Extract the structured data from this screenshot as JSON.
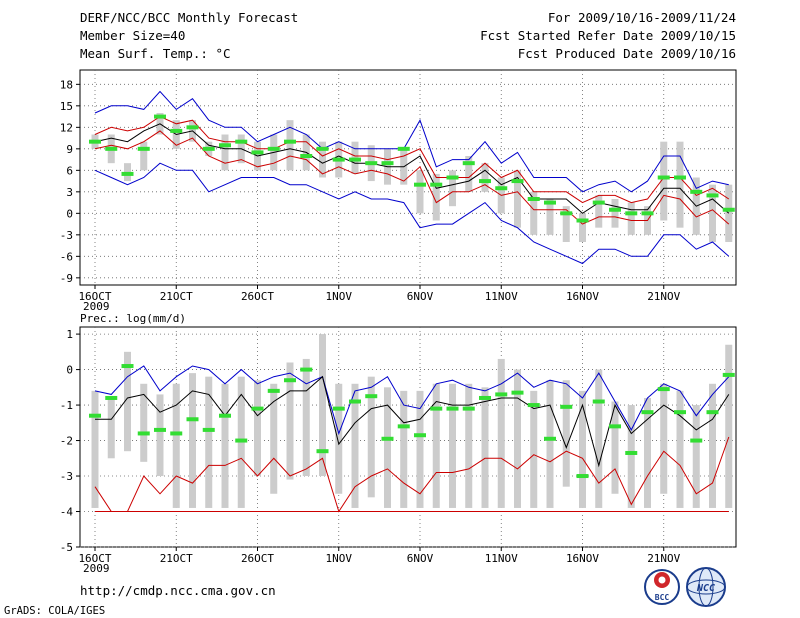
{
  "header": {
    "title": "DERF/NCC/BCC Monthly Forecast",
    "member_size": "Member Size=40",
    "variable": "Mean Surf. Temp.: °C",
    "for_range": "For 2009/10/16-2009/11/24",
    "started": "Fcst Started Refer Date 2009/10/15",
    "produced": "Fcst Produced Date 2009/10/16"
  },
  "footer": {
    "url": "http://cmdp.ncc.cma.gov.cn",
    "credit": "GrADS: COLA/IGES",
    "logo_left_text": "BCC",
    "logo_right_text": "NCC"
  },
  "colors": {
    "max_line": "#0000cc",
    "min_line": "#cc0000",
    "mean_line": "#000000",
    "median_marker": "#33dd33",
    "box": "#cccccc",
    "grid": "#666666"
  },
  "chart_data": [
    {
      "type": "line",
      "title": "Mean Surf. Temp.: °C",
      "x_tick_labels": [
        "16OCT",
        "21OCT",
        "26OCT",
        "1NOV",
        "6NOV",
        "11NOV",
        "16NOV",
        "21NOV"
      ],
      "x_tick_index": [
        0,
        5,
        10,
        15,
        20,
        25,
        30,
        35
      ],
      "x_sublabel": "2009",
      "y_ticks": [
        18,
        15,
        12,
        9,
        6,
        3,
        0,
        -3,
        -6,
        -9
      ],
      "ylim": [
        -10,
        20
      ],
      "series": [
        {
          "name": "max",
          "values": [
            14,
            15,
            15,
            14.5,
            17,
            14.5,
            16,
            13,
            12,
            12,
            10,
            11,
            12,
            11,
            9,
            10,
            9,
            9,
            9,
            9,
            13,
            6.5,
            7.5,
            7.5,
            10,
            7,
            8.5,
            5,
            5,
            5,
            3,
            4,
            4.5,
            3,
            4.5,
            8,
            8,
            3.5,
            4.5,
            4
          ]
        },
        {
          "name": "upper",
          "values": [
            11,
            12,
            11.5,
            12,
            13.5,
            12.5,
            13,
            10.5,
            10,
            10,
            9,
            9,
            10,
            10,
            8,
            9,
            8,
            8,
            7.5,
            8,
            9,
            5,
            5,
            5,
            7,
            5,
            6,
            3,
            3,
            3,
            1.5,
            2.5,
            2.5,
            1.5,
            2,
            5,
            5,
            2.5,
            3.5,
            2
          ]
        },
        {
          "name": "mean",
          "values": [
            10,
            10.5,
            10,
            11.5,
            12.5,
            11,
            11.5,
            9.5,
            9,
            9,
            8,
            8.5,
            9,
            8.5,
            7,
            8,
            7,
            7,
            6.5,
            6.5,
            8,
            3.5,
            4,
            4.5,
            6,
            4,
            5,
            2,
            2,
            2,
            0,
            1.5,
            1,
            0.5,
            0.5,
            3.5,
            3.5,
            1,
            2,
            0
          ]
        },
        {
          "name": "lower",
          "values": [
            9,
            9.5,
            9,
            10,
            11.5,
            9.5,
            10.5,
            8,
            7,
            7.5,
            6.5,
            7,
            8,
            7.5,
            5.5,
            6.5,
            5.5,
            6,
            5.5,
            4.5,
            6.5,
            1.5,
            3,
            3,
            4,
            2.5,
            3,
            0.5,
            0.5,
            0.5,
            -1.5,
            -0.5,
            -0.5,
            -1,
            -1,
            2.5,
            2,
            -0.5,
            0.5,
            -1.5
          ]
        },
        {
          "name": "min",
          "values": [
            6,
            5,
            4,
            5,
            7,
            6,
            6,
            3,
            4,
            5,
            5,
            5,
            4,
            4,
            3,
            2,
            3,
            2,
            2,
            1.5,
            -2,
            -1.5,
            -1.5,
            0,
            1.5,
            -1,
            -2,
            -4,
            -5,
            -6,
            -7,
            -5,
            -5,
            -6,
            -6,
            -3,
            -3,
            -5,
            -4,
            -6
          ]
        },
        {
          "name": "median",
          "values": [
            10,
            9,
            5.5,
            9,
            13.5,
            11.5,
            12,
            9,
            9.5,
            10,
            8.5,
            9,
            10,
            8,
            9,
            7.5,
            7.5,
            7,
            7,
            9,
            4,
            4,
            5,
            7,
            4.5,
            3.5,
            4.5,
            2,
            1.5,
            0,
            -1,
            1.5,
            0.5,
            0,
            0,
            5,
            5,
            3,
            2.5,
            0.5
          ]
        },
        {
          "name": "box_high",
          "values": [
            11,
            11,
            7,
            10,
            14,
            13,
            13,
            10,
            11,
            11,
            10,
            11,
            13,
            11,
            10,
            10,
            10,
            9.5,
            9,
            9,
            6,
            5.5,
            6,
            8,
            7,
            5,
            6,
            3,
            2,
            1,
            0,
            2.5,
            2,
            1.5,
            1,
            10,
            10,
            5,
            4,
            4
          ]
        },
        {
          "name": "box_low",
          "values": [
            9,
            7,
            4.5,
            6,
            11,
            9,
            10,
            8,
            6,
            7,
            6,
            6,
            6,
            6,
            5,
            5,
            5.5,
            4.5,
            4,
            4,
            0,
            -1,
            1,
            3,
            3,
            0,
            -2,
            -3,
            -3,
            -4,
            -4,
            -2,
            -2,
            -3,
            -3,
            -1,
            -2,
            -3,
            -4,
            -4
          ]
        }
      ]
    },
    {
      "type": "line",
      "title": "Prec.: log(mm/d)",
      "x_tick_labels": [
        "16OCT",
        "21OCT",
        "26OCT",
        "1NOV",
        "6NOV",
        "11NOV",
        "16NOV",
        "21NOV"
      ],
      "x_tick_index": [
        0,
        5,
        10,
        15,
        20,
        25,
        30,
        35
      ],
      "x_sublabel": "2009",
      "y_ticks": [
        1,
        0,
        -1,
        -2,
        -3,
        -4,
        -5
      ],
      "ylim": [
        -5,
        1.2
      ],
      "series": [
        {
          "name": "max",
          "values": [
            -0.6,
            -0.7,
            -0.2,
            0.1,
            -0.6,
            -0.2,
            0.1,
            0,
            -0.4,
            0,
            -0.4,
            -0.2,
            -0.1,
            -0.4,
            -0.2,
            -1.8,
            -0.6,
            -0.5,
            -0.2,
            -1.0,
            -1.1,
            -0.4,
            -0.3,
            -0.5,
            -0.6,
            -0.4,
            -0.1,
            -0.5,
            -0.3,
            -0.4,
            -0.8,
            -0.1,
            -0.9,
            -1.7,
            -0.8,
            -0.4,
            -0.6,
            -1.3,
            -0.7,
            -0.2
          ]
        },
        {
          "name": "mean",
          "values": [
            -1.4,
            -1.4,
            -0.8,
            -0.7,
            -1.2,
            -1.0,
            -0.6,
            -0.7,
            -1.3,
            -0.7,
            -1.3,
            -0.9,
            -0.6,
            -0.6,
            -0.2,
            -2.1,
            -1.5,
            -1.1,
            -1.0,
            -1.5,
            -1.4,
            -0.9,
            -1.0,
            -1.0,
            -0.9,
            -0.8,
            -0.8,
            -1.1,
            -1.0,
            -2.2,
            -1.0,
            -2.7,
            -1.0,
            -1.8,
            -1.4,
            -1.0,
            -1.3,
            -1.7,
            -1.4,
            -0.7
          ]
        },
        {
          "name": "min",
          "values": [
            -3.3,
            -4.0,
            -4.0,
            -3.0,
            -3.5,
            -3.0,
            -3.2,
            -2.7,
            -2.7,
            -2.5,
            -3.0,
            -2.5,
            -3.0,
            -2.8,
            -2.5,
            -4.0,
            -3.3,
            -3.0,
            -2.8,
            -3.2,
            -3.5,
            -2.9,
            -2.9,
            -2.8,
            -2.5,
            -2.5,
            -2.8,
            -2.4,
            -2.6,
            -2.3,
            -2.5,
            -3.2,
            -2.8,
            -3.8,
            -3.0,
            -2.3,
            -2.7,
            -3.5,
            -3.2,
            -1.9
          ]
        },
        {
          "name": "floor",
          "values": [
            -4,
            -4,
            -4,
            -4,
            -4,
            -4,
            -4,
            -4,
            -4,
            -4,
            -4,
            -4,
            -4,
            -4,
            -4,
            -4,
            -4,
            -4,
            -4,
            -4,
            -4,
            -4,
            -4,
            -4,
            -4,
            -4,
            -4,
            -4,
            -4,
            -4,
            -4,
            -4,
            -4,
            -4,
            -4,
            -4,
            -4,
            -4,
            -4,
            -4
          ]
        },
        {
          "name": "median",
          "values": [
            -1.3,
            -0.8,
            0.1,
            -1.8,
            -1.7,
            -1.8,
            -1.4,
            -1.7,
            -1.3,
            -2.0,
            -1.1,
            -0.6,
            -0.3,
            0,
            -2.3,
            -1.1,
            -0.9,
            -0.75,
            -1.95,
            -1.6,
            -1.85,
            -1.1,
            -1.1,
            -1.1,
            -0.8,
            -0.7,
            -0.65,
            -1.0,
            -1.95,
            -1.05,
            -3.0,
            -0.9,
            -1.6,
            -2.35,
            -1.2,
            -0.55,
            -1.2,
            -2.0,
            -1.2,
            -0.15
          ]
        },
        {
          "name": "box_high",
          "values": [
            -0.6,
            -0.8,
            0.5,
            -0.4,
            -0.7,
            -0.4,
            -0.1,
            -0.2,
            -0.4,
            -0.2,
            -0.3,
            -0.4,
            0.2,
            0.3,
            1.0,
            -0.4,
            -0.4,
            -0.2,
            -0.5,
            -0.6,
            -0.6,
            -0.4,
            -0.4,
            -0.4,
            -0.5,
            0.3,
            0,
            -0.6,
            -0.3,
            -0.3,
            -0.6,
            0,
            -0.9,
            -1.0,
            -0.8,
            -0.4,
            -0.6,
            -1.0,
            -0.4,
            0.7
          ]
        },
        {
          "name": "box_low",
          "values": [
            -3.9,
            -2.5,
            -2.3,
            -2.6,
            -3.0,
            -3.9,
            -3.9,
            -3.9,
            -3.9,
            -3.9,
            -3.0,
            -3.5,
            -3.1,
            -3.0,
            -3.0,
            -3.5,
            -3.9,
            -3.6,
            -3.9,
            -3.9,
            -3.9,
            -3.9,
            -3.9,
            -3.9,
            -3.9,
            -3.9,
            -3.9,
            -3.9,
            -3.9,
            -3.3,
            -3.9,
            -3.9,
            -3.5,
            -3.9,
            -3.9,
            -3.5,
            -3.9,
            -3.9,
            -3.9,
            -3.9
          ]
        }
      ]
    }
  ]
}
